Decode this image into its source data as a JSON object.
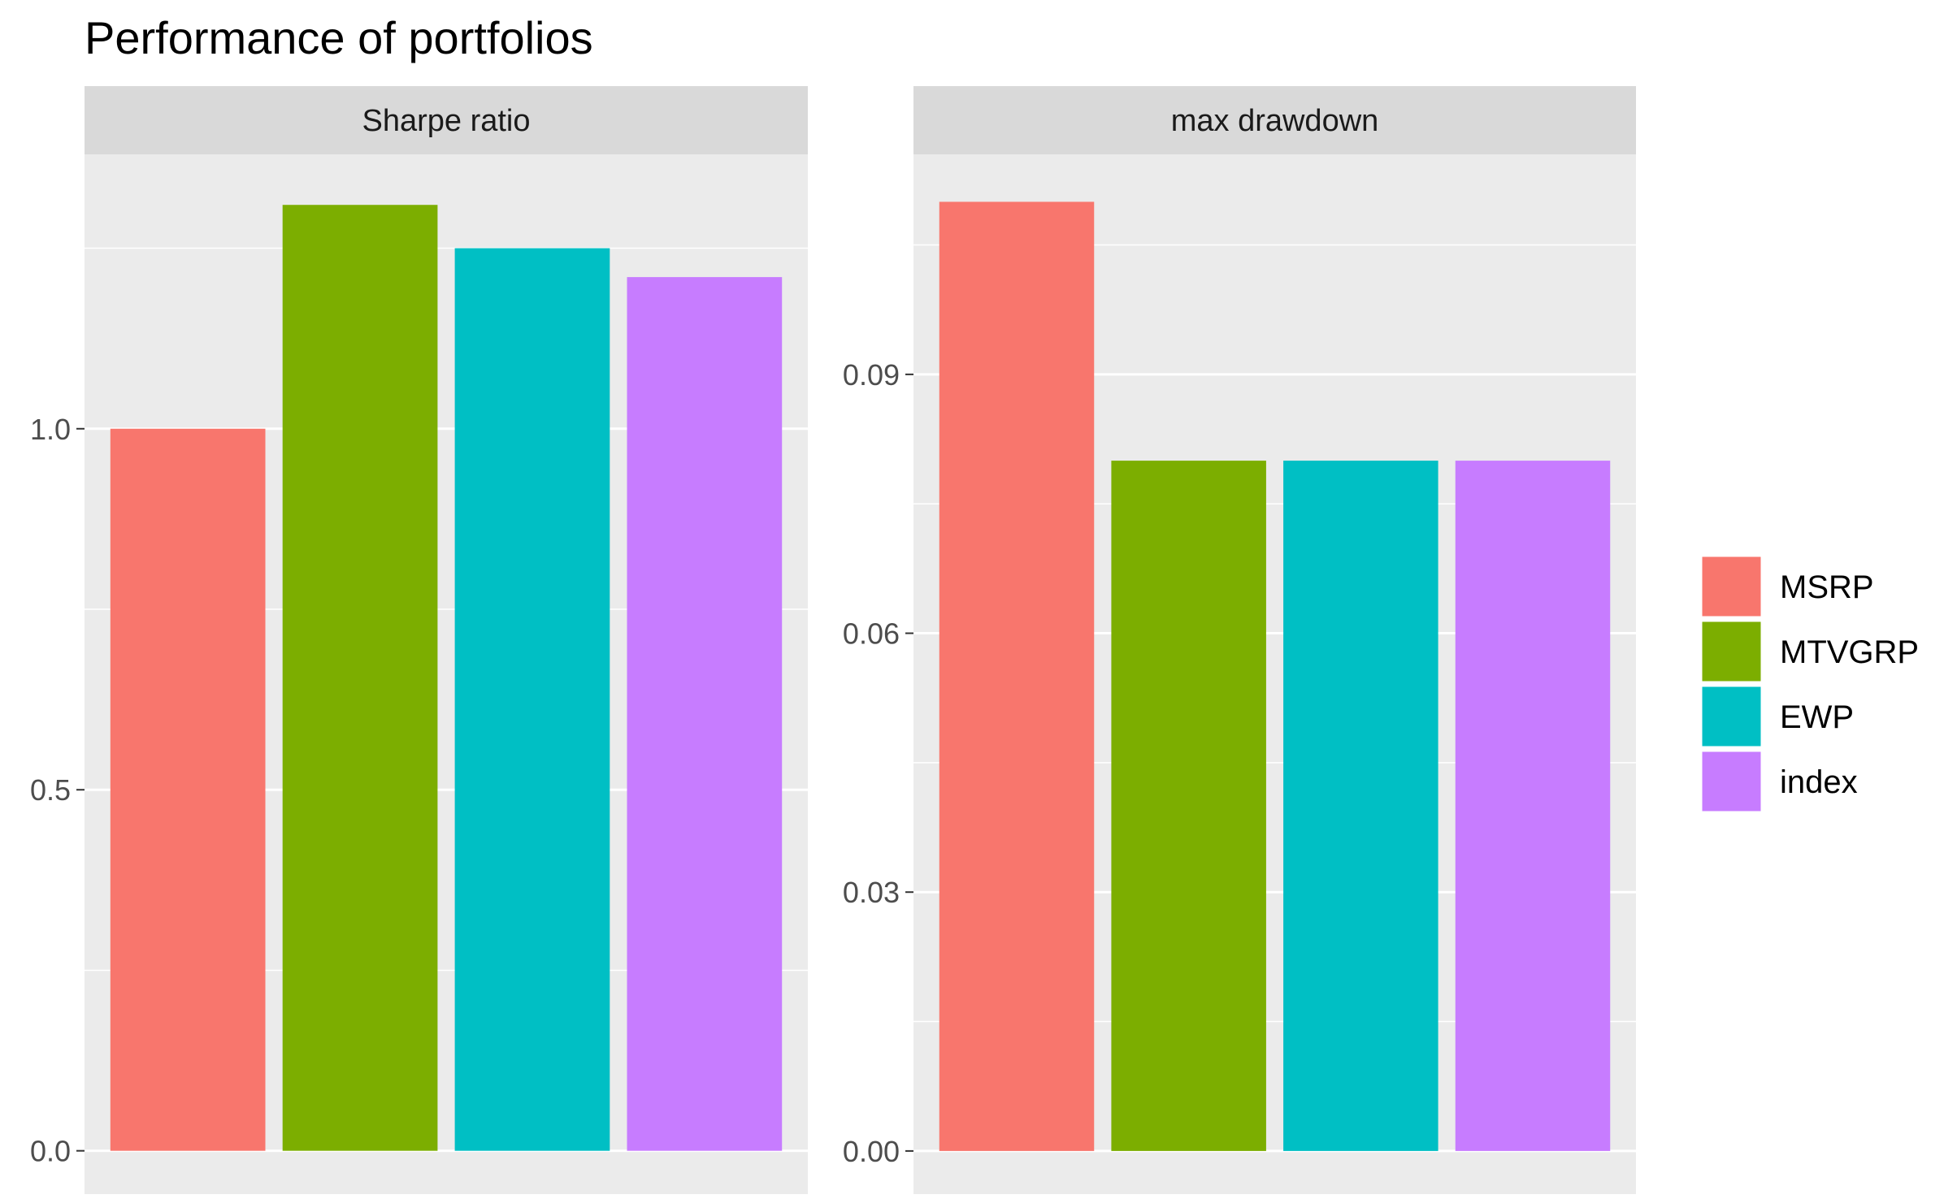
{
  "chart_data": {
    "type": "bar",
    "title": "Performance of portfolios",
    "categories": [
      "MSRP",
      "MTVGRP",
      "EWP",
      "index"
    ],
    "colors": [
      "#F8766D",
      "#7CAE00",
      "#00BFC4",
      "#C77CFF"
    ],
    "panel_background": "#EBEBEB",
    "strip_background": "#D9D9D9",
    "grid_color": "#FFFFFF",
    "text_color": "#000000",
    "axis_text_color": "#4D4D4D",
    "legend_position": "right",
    "panels": [
      {
        "strip_label": "Sharpe ratio",
        "ylim": [
          -0.06,
          1.38
        ],
        "yticks": [
          0.0,
          0.5,
          1.0
        ],
        "ytick_labels": [
          "0.0",
          "0.5",
          "1.0"
        ],
        "minor_ticks": [
          0.25,
          0.75,
          1.25
        ],
        "values": [
          1.0,
          1.31,
          1.25,
          1.21
        ]
      },
      {
        "strip_label": "max drawdown",
        "ylim": [
          -0.005,
          0.1155
        ],
        "yticks": [
          0.0,
          0.03,
          0.06,
          0.09
        ],
        "ytick_labels": [
          "0.00",
          "0.03",
          "0.06",
          "0.09"
        ],
        "minor_ticks": [
          0.015,
          0.045,
          0.075,
          0.105
        ],
        "values": [
          0.11,
          0.08,
          0.08,
          0.08
        ]
      }
    ]
  }
}
